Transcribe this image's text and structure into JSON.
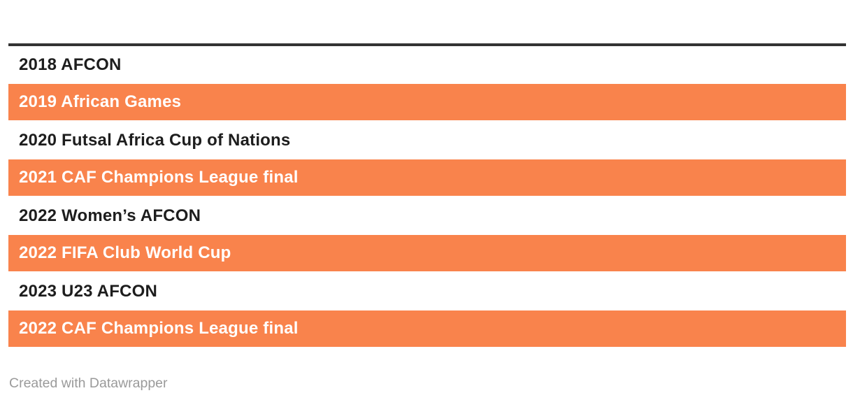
{
  "chart_data": {
    "type": "bar",
    "categories": [
      "2018 AFCON",
      "2019 African Games",
      "2020 Futsal Africa Cup of Nations",
      "2021 CAF Champions League final",
      "2022 Women’s AFCON",
      "2022 FIFA Club World Cup",
      "2023 U23 AFCON",
      "2022 CAF Champions League final"
    ],
    "values": [
      0,
      1,
      0,
      1,
      0,
      1,
      0,
      1
    ],
    "series": [
      {
        "name": "highlighted-full-width-bar",
        "values": [
          0,
          1,
          0,
          1,
          0,
          1,
          0,
          1
        ]
      }
    ],
    "title": "",
    "xlabel": "",
    "ylabel": "",
    "ylim": [
      0,
      1
    ],
    "grid": false,
    "legend": "none",
    "orientation": "horizontal",
    "bar_color": "#f9834c"
  },
  "rows": [
    {
      "label": "2018 AFCON",
      "highlighted": false
    },
    {
      "label": "2019 African Games",
      "highlighted": true
    },
    {
      "label": "2020 Futsal Africa Cup of Nations",
      "highlighted": false
    },
    {
      "label": "2021 CAF Champions League final",
      "highlighted": true
    },
    {
      "label": "2022 Women’s AFCON",
      "highlighted": false
    },
    {
      "label": "2022 FIFA Club World Cup",
      "highlighted": true
    },
    {
      "label": "2023 U23 AFCON",
      "highlighted": false
    },
    {
      "label": "2022 CAF Champions League final",
      "highlighted": true
    }
  ],
  "footer": {
    "attribution": "Created with Datawrapper"
  },
  "colors": {
    "accent_orange": "#f9834c",
    "top_rule_dark": "#333333",
    "text_dark": "#1d1d1d",
    "text_on_orange": "#ffffff",
    "footer_gray": "#9a9a9a",
    "background": "#ffffff"
  }
}
